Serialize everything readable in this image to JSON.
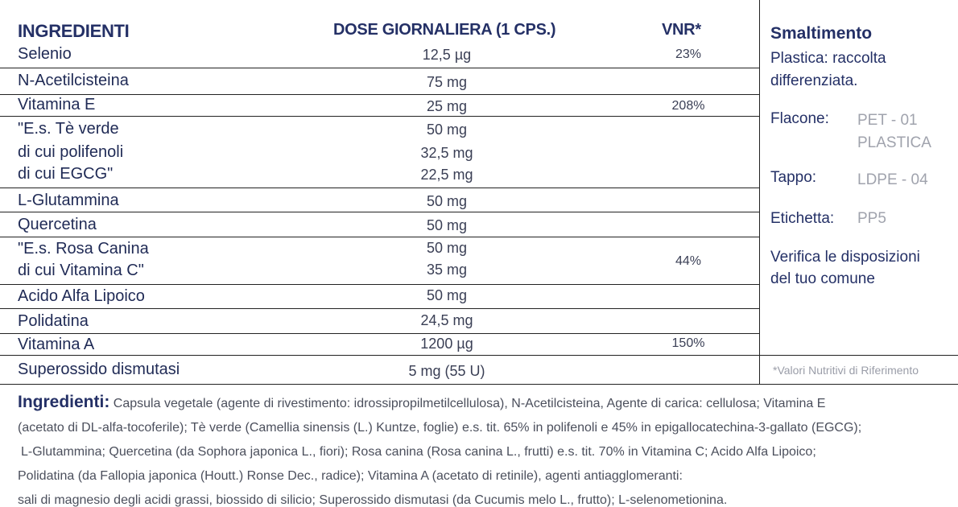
{
  "headers": {
    "ingredients": "INGREDIENTI",
    "dose": "DOSE GIORNALIERA (1 CPS.)",
    "vnr": "VNR*"
  },
  "rows": [
    {
      "name": "Selenio",
      "dose": "12,5 µg",
      "vnr": "23%"
    },
    {
      "name": "N-Acetilcisteina",
      "dose": "75 mg",
      "vnr": ""
    },
    {
      "name": "Vitamina E",
      "dose": "25 mg",
      "vnr": "208%"
    },
    {
      "name": "\"E.s. Tè verde",
      "dose": "50 mg",
      "vnr": ""
    },
    {
      "name": "di cui polifenoli",
      "dose": "32,5 mg",
      "vnr": ""
    },
    {
      "name": "di cui EGCG\"",
      "dose": "22,5 mg",
      "vnr": ""
    },
    {
      "name": "L-Glutammina",
      "dose": "50 mg",
      "vnr": ""
    },
    {
      "name": "Quercetina",
      "dose": "50 mg",
      "vnr": ""
    },
    {
      "name": "\"E.s. Rosa Canina",
      "dose": "50 mg",
      "vnr": ""
    },
    {
      "name": "di cui Vitamina C\"",
      "dose": "35 mg",
      "vnr": "44%"
    },
    {
      "name": "Acido Alfa Lipoico",
      "dose": "50 mg",
      "vnr": ""
    },
    {
      "name": "Polidatina",
      "dose": "24,5 mg",
      "vnr": ""
    },
    {
      "name": "Vitamina A",
      "dose": "1200 µg",
      "vnr": "150%"
    },
    {
      "name": "Superossido dismutasi",
      "dose": "5 mg (55 U)",
      "vnr": ""
    }
  ],
  "disposal": {
    "title": "Smaltimento",
    "intro_line1": "Plastica: raccolta",
    "intro_line2": "differenziata.",
    "bottle_label": "Flacone:",
    "bottle_value_line1": "PET - 01",
    "bottle_value_line2": "PLASTICA",
    "cap_label": "Tappo:",
    "cap_value": "LDPE - 04",
    "label_label": "Etichetta:",
    "label_value": "PP5",
    "note_line1": "Verifica le disposizioni",
    "note_line2": "del tuo comune"
  },
  "footnote": "*Valori Nutritivi di Riferimento",
  "ingredients_text": {
    "label": "Ingredienti:",
    "line1": "Capsula vegetale (agente di rivestimento: idrossipropilmetilcellulosa), N-Acetilcisteina, Agente di carica: cellulosa; Vitamina E",
    "line2": "(acetato di DL-alfa-tocoferile); Tè verde (Camellia sinensis (L.) Kuntze, foglie) e.s. tit. 65% in polifenoli e 45% in epigallocatechina-3-gallato (EGCG);",
    "line3": "L-Glutammina; Quercetina (da Sophora japonica L., fiori); Rosa canina (Rosa canina L., frutti) e.s. tit. 70% in Vitamina C; Acido Alfa Lipoico;",
    "line4": "Polidatina (da Fallopia japonica (Houtt.) Ronse Dec., radice); Vitamina A (acetato di retinile), agenti antiagglomeranti:",
    "line5": "sali di magnesio degli acidi grassi, biossido di silicio; Superossido dismutasi (da Cucumis melo L., frutto); L-selenometionina."
  }
}
